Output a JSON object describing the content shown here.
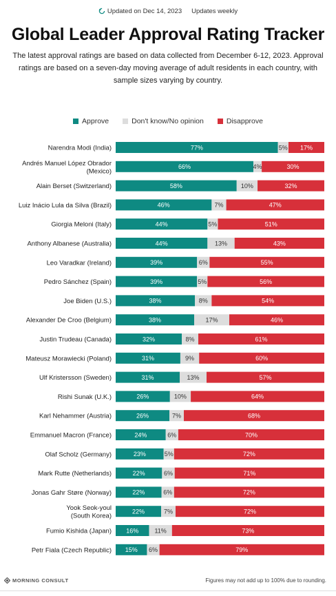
{
  "header": {
    "updated": "Updated on Dec 14, 2023",
    "frequency": "Updates weekly"
  },
  "title": "Global Leader Approval Rating Tracker",
  "subtitle": "The latest approval ratings are based on data collected from December 6-12, 2023. Approval ratings are based on a seven-day moving average of adult residents in each country, with sample sizes varying by country.",
  "legend": {
    "approve": "Approve",
    "dontknow": "Don't know/No opinion",
    "disapprove": "Disapprove"
  },
  "colors": {
    "approve": "#0e8a82",
    "dontknow": "#dddddd",
    "disapprove": "#d7303a"
  },
  "footer": {
    "brand": "MORNING CONSULT",
    "note": "Figures may not add up to 100% due to rounding."
  },
  "chart_data": {
    "type": "bar",
    "orientation": "horizontal",
    "stacked": true,
    "categories": [
      [
        "Narendra Modi (India)"
      ],
      [
        "Andrés Manuel López Obrador",
        "(Mexico)"
      ],
      [
        "Alain Berset (Switzerland)"
      ],
      [
        "Luiz Inácio Lula da Silva (Brazil)"
      ],
      [
        "Giorgia Meloni (Italy)"
      ],
      [
        "Anthony Albanese (Australia)"
      ],
      [
        "Leo Varadkar (Ireland)"
      ],
      [
        "Pedro Sánchez (Spain)"
      ],
      [
        "Joe Biden (U.S.)"
      ],
      [
        "Alexander De Croo (Belgium)"
      ],
      [
        "Justin Trudeau (Canada)"
      ],
      [
        "Mateusz Morawiecki (Poland)"
      ],
      [
        "Ulf Kristersson (Sweden)"
      ],
      [
        "Rishi Sunak (U.K.)"
      ],
      [
        "Karl Nehammer (Austria)"
      ],
      [
        "Emmanuel Macron (France)"
      ],
      [
        "Olaf Scholz (Germany)"
      ],
      [
        "Mark Rutte (Netherlands)"
      ],
      [
        "Jonas Gahr Støre (Norway)"
      ],
      [
        "Yook Seok-youl",
        "(South Korea)"
      ],
      [
        "Fumio Kishida (Japan)"
      ],
      [
        "Petr Fiala (Czech Republic)"
      ]
    ],
    "series": [
      {
        "name": "Approve",
        "values": [
          77,
          66,
          58,
          46,
          44,
          44,
          39,
          39,
          38,
          38,
          32,
          31,
          31,
          26,
          26,
          24,
          23,
          22,
          22,
          22,
          16,
          15
        ]
      },
      {
        "name": "Don't know/No opinion",
        "values": [
          5,
          4,
          10,
          7,
          5,
          13,
          6,
          5,
          8,
          17,
          8,
          9,
          13,
          10,
          7,
          6,
          5,
          6,
          6,
          7,
          11,
          6
        ]
      },
      {
        "name": "Disapprove",
        "values": [
          17,
          30,
          32,
          47,
          51,
          43,
          55,
          56,
          54,
          46,
          61,
          60,
          57,
          64,
          68,
          70,
          72,
          71,
          72,
          72,
          73,
          79
        ]
      }
    ],
    "unit": "%",
    "legend_position": "top"
  }
}
